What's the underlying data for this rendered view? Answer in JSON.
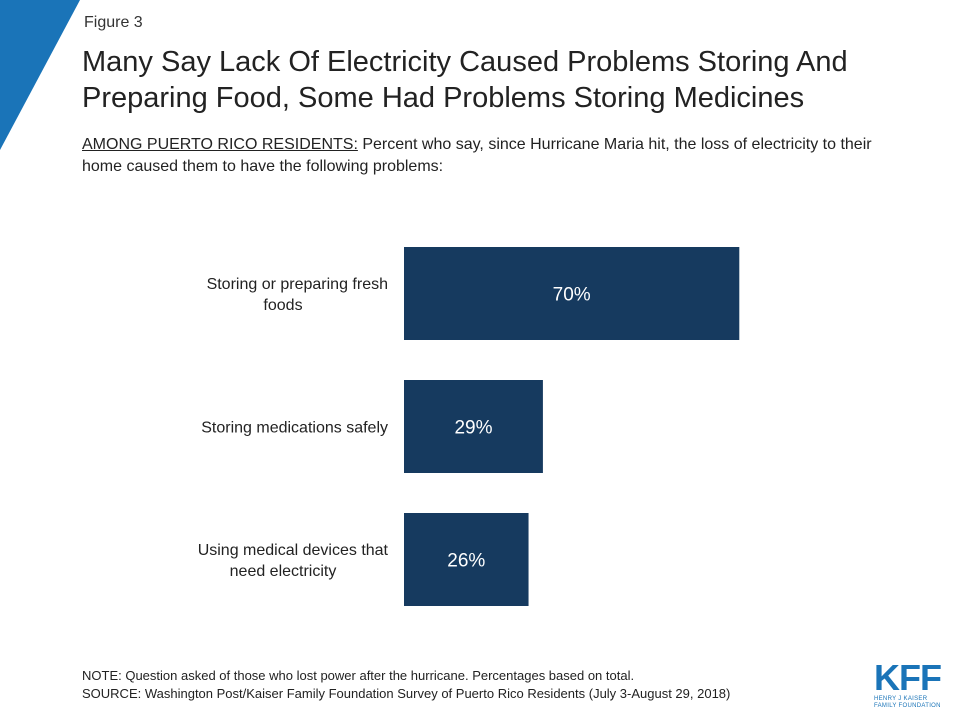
{
  "figure_label": "Figure 3",
  "title": "Many Say Lack Of Electricity Caused Problems Storing And Preparing Food, Some Had Problems Storing Medicines",
  "subtitle_prefix": "AMONG PUERTO RICO RESIDENTS:",
  "subtitle_rest": " Percent who say, since Hurricane Maria hit, the loss of electricity to their home caused them to have the following problems:",
  "colors": {
    "bar": "#163a5f",
    "accent": "#1a74b8",
    "label_text": "#ffffff"
  },
  "chart_data": {
    "type": "bar",
    "orientation": "horizontal",
    "categories": [
      [
        "Storing or preparing fresh",
        "foods"
      ],
      [
        "Storing medications safely"
      ],
      [
        "Using medical devices that",
        "need electricity"
      ]
    ],
    "values": [
      70,
      29,
      26
    ],
    "value_labels": [
      "70%",
      "29%",
      "26%"
    ],
    "xlim": [
      0,
      100
    ],
    "grid": false,
    "legend": "none"
  },
  "footer": {
    "note": "NOTE: Question asked of those who lost power after the hurricane. Percentages based on total.",
    "source": "SOURCE: Washington Post/Kaiser Family Foundation Survey of Puerto Rico Residents (July 3-August 29, 2018)"
  },
  "logo": {
    "text": "KFF",
    "line1": "HENRY J KAISER",
    "line2": "FAMILY FOUNDATION"
  }
}
